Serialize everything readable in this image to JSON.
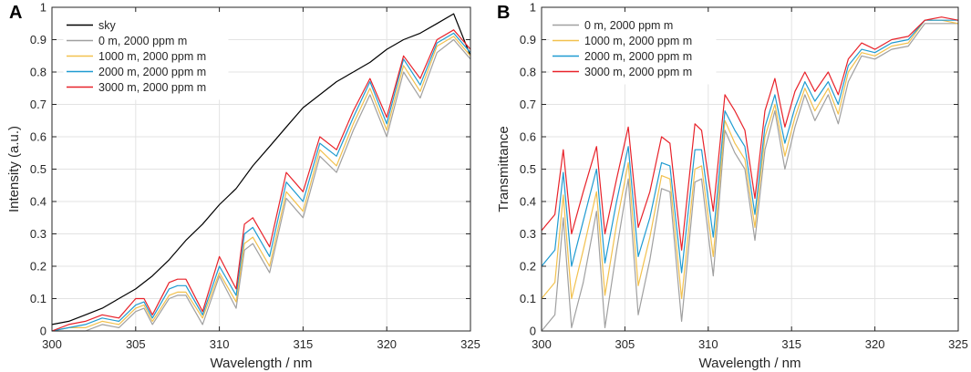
{
  "chart_data": [
    {
      "panel": "A",
      "type": "line",
      "xlabel": "Wavelength / nm",
      "ylabel": "Intensity (a.u.)",
      "xlim": [
        300,
        325
      ],
      "ylim": [
        0,
        1
      ],
      "xticks": [
        "300",
        "305",
        "310",
        "315",
        "320",
        "325"
      ],
      "yticks": [
        "0",
        "0.1",
        "0.2",
        "0.3",
        "0.4",
        "0.5",
        "0.6",
        "0.7",
        "0.8",
        "0.9",
        "1"
      ],
      "grid": true,
      "legend_position": "top-left",
      "series": [
        {
          "name": "sky",
          "color": "#000000",
          "x": [
            300,
            301,
            302,
            303,
            304,
            305,
            306,
            307,
            308,
            309,
            310,
            311,
            312,
            313,
            314,
            315,
            316,
            317,
            318,
            319,
            320,
            321,
            322,
            323,
            324,
            325
          ],
          "y": [
            0.02,
            0.03,
            0.05,
            0.07,
            0.1,
            0.13,
            0.17,
            0.22,
            0.28,
            0.33,
            0.39,
            0.44,
            0.51,
            0.57,
            0.63,
            0.69,
            0.73,
            0.77,
            0.8,
            0.83,
            0.87,
            0.9,
            0.92,
            0.95,
            0.98,
            0.85
          ]
        },
        {
          "name": "0 m, 2000 ppm m",
          "color": "#a0a0a0",
          "x": [
            300,
            301,
            302,
            303,
            304,
            305,
            305.5,
            306,
            307,
            307.5,
            308,
            309,
            310,
            311,
            311.5,
            312,
            313,
            314,
            315,
            316,
            317,
            318,
            319,
            320,
            321,
            322,
            323,
            324,
            325
          ],
          "y": [
            0,
            0,
            0,
            0.02,
            0.01,
            0.06,
            0.07,
            0.02,
            0.1,
            0.11,
            0.11,
            0.02,
            0.17,
            0.07,
            0.25,
            0.27,
            0.18,
            0.41,
            0.35,
            0.54,
            0.49,
            0.62,
            0.73,
            0.6,
            0.8,
            0.72,
            0.86,
            0.9,
            0.84
          ]
        },
        {
          "name": "1000 m, 2000 ppm m",
          "color": "#f2c14e",
          "x": [
            300,
            301,
            302,
            303,
            304,
            305,
            305.5,
            306,
            307,
            307.5,
            308,
            309,
            310,
            311,
            311.5,
            312,
            313,
            314,
            315,
            316,
            317,
            318,
            319,
            320,
            321,
            322,
            323,
            324,
            325
          ],
          "y": [
            0,
            0.01,
            0.01,
            0.03,
            0.02,
            0.07,
            0.08,
            0.03,
            0.11,
            0.12,
            0.12,
            0.04,
            0.18,
            0.09,
            0.27,
            0.29,
            0.2,
            0.43,
            0.37,
            0.56,
            0.51,
            0.64,
            0.75,
            0.62,
            0.82,
            0.74,
            0.88,
            0.91,
            0.85
          ]
        },
        {
          "name": "2000 m, 2000 ppm m",
          "color": "#1f9bd1",
          "x": [
            300,
            301,
            302,
            303,
            304,
            305,
            305.5,
            306,
            307,
            307.5,
            308,
            309,
            310,
            311,
            311.5,
            312,
            313,
            314,
            315,
            316,
            317,
            318,
            319,
            320,
            321,
            322,
            323,
            324,
            325
          ],
          "y": [
            0,
            0.01,
            0.02,
            0.04,
            0.03,
            0.08,
            0.09,
            0.04,
            0.13,
            0.14,
            0.14,
            0.05,
            0.2,
            0.11,
            0.3,
            0.32,
            0.23,
            0.46,
            0.4,
            0.58,
            0.54,
            0.66,
            0.77,
            0.64,
            0.84,
            0.76,
            0.89,
            0.92,
            0.86
          ]
        },
        {
          "name": "3000 m, 2000 ppm m",
          "color": "#e8222a",
          "x": [
            300,
            301,
            302,
            303,
            304,
            305,
            305.5,
            306,
            307,
            307.5,
            308,
            309,
            310,
            311,
            311.5,
            312,
            313,
            314,
            315,
            316,
            317,
            318,
            319,
            320,
            321,
            322,
            323,
            324,
            325
          ],
          "y": [
            0,
            0.02,
            0.03,
            0.05,
            0.04,
            0.1,
            0.1,
            0.05,
            0.15,
            0.16,
            0.16,
            0.06,
            0.23,
            0.13,
            0.33,
            0.35,
            0.26,
            0.49,
            0.43,
            0.6,
            0.56,
            0.68,
            0.78,
            0.66,
            0.85,
            0.78,
            0.9,
            0.93,
            0.87
          ]
        }
      ]
    },
    {
      "panel": "B",
      "type": "line",
      "xlabel": "Wavelength / nm",
      "ylabel": "Transmittance",
      "xlim": [
        300,
        325
      ],
      "ylim": [
        0,
        1
      ],
      "xticks": [
        "300",
        "305",
        "310",
        "315",
        "320",
        "325"
      ],
      "yticks": [
        "0",
        "0.1",
        "0.2",
        "0.3",
        "0.4",
        "0.5",
        "0.6",
        "0.7",
        "0.8",
        "0.9",
        "1"
      ],
      "grid": true,
      "legend_position": "top-left",
      "series": [
        {
          "name": "0 m, 2000 ppm m",
          "color": "#a0a0a0",
          "x": [
            300,
            300.8,
            301.3,
            301.8,
            302.5,
            303.3,
            303.8,
            304.5,
            305.2,
            305.8,
            306.5,
            307.2,
            307.7,
            308.4,
            309.2,
            309.6,
            310.3,
            311,
            311.6,
            312.2,
            312.8,
            313.4,
            314,
            314.6,
            315.2,
            315.8,
            316.4,
            317.2,
            317.8,
            318.4,
            319.2,
            320,
            321,
            322,
            323,
            324,
            325
          ],
          "y": [
            0,
            0.05,
            0.35,
            0.01,
            0.15,
            0.37,
            0.01,
            0.25,
            0.47,
            0.05,
            0.22,
            0.44,
            0.43,
            0.03,
            0.46,
            0.47,
            0.17,
            0.62,
            0.55,
            0.5,
            0.28,
            0.56,
            0.68,
            0.5,
            0.63,
            0.73,
            0.65,
            0.73,
            0.64,
            0.77,
            0.85,
            0.84,
            0.87,
            0.88,
            0.95,
            0.95,
            0.95
          ]
        },
        {
          "name": "1000 m, 2000 ppm m",
          "color": "#f2c14e",
          "x": [
            300,
            300.8,
            301.3,
            301.8,
            302.5,
            303.3,
            303.8,
            304.5,
            305.2,
            305.8,
            306.5,
            307.2,
            307.7,
            308.4,
            309.2,
            309.6,
            310.3,
            311,
            311.6,
            312.2,
            312.8,
            313.4,
            314,
            314.6,
            315.2,
            315.8,
            316.4,
            317.2,
            317.8,
            318.4,
            319.2,
            320,
            321,
            322,
            323,
            324,
            325
          ],
          "y": [
            0.1,
            0.15,
            0.42,
            0.1,
            0.25,
            0.43,
            0.11,
            0.33,
            0.52,
            0.14,
            0.29,
            0.48,
            0.47,
            0.1,
            0.5,
            0.51,
            0.23,
            0.65,
            0.58,
            0.53,
            0.32,
            0.6,
            0.7,
            0.54,
            0.66,
            0.75,
            0.68,
            0.75,
            0.67,
            0.8,
            0.86,
            0.85,
            0.88,
            0.89,
            0.96,
            0.96,
            0.95
          ]
        },
        {
          "name": "2000 m, 2000 ppm m",
          "color": "#1f9bd1",
          "x": [
            300,
            300.8,
            301.3,
            301.8,
            302.5,
            303.3,
            303.8,
            304.5,
            305.2,
            305.8,
            306.5,
            307.2,
            307.7,
            308.4,
            309.2,
            309.6,
            310.3,
            311,
            311.6,
            312.2,
            312.8,
            313.4,
            314,
            314.6,
            315.2,
            315.8,
            316.4,
            317.2,
            317.8,
            318.4,
            319.2,
            320,
            321,
            322,
            323,
            324,
            325
          ],
          "y": [
            0.2,
            0.25,
            0.49,
            0.2,
            0.34,
            0.5,
            0.21,
            0.4,
            0.57,
            0.23,
            0.35,
            0.52,
            0.51,
            0.18,
            0.56,
            0.56,
            0.29,
            0.68,
            0.62,
            0.57,
            0.36,
            0.63,
            0.73,
            0.58,
            0.69,
            0.77,
            0.71,
            0.77,
            0.7,
            0.82,
            0.87,
            0.86,
            0.89,
            0.9,
            0.96,
            0.96,
            0.96
          ]
        },
        {
          "name": "3000 m, 2000 ppm m",
          "color": "#e8222a",
          "x": [
            300,
            300.8,
            301.3,
            301.8,
            302.5,
            303.3,
            303.8,
            304.5,
            305.2,
            305.8,
            306.5,
            307.2,
            307.7,
            308.4,
            309.2,
            309.6,
            310.3,
            311,
            311.6,
            312.2,
            312.8,
            313.4,
            314,
            314.6,
            315.2,
            315.8,
            316.4,
            317.2,
            317.8,
            318.4,
            319.2,
            320,
            321,
            322,
            323,
            324,
            325
          ],
          "y": [
            0.31,
            0.36,
            0.56,
            0.3,
            0.43,
            0.57,
            0.3,
            0.47,
            0.63,
            0.32,
            0.43,
            0.6,
            0.58,
            0.25,
            0.64,
            0.62,
            0.37,
            0.73,
            0.68,
            0.62,
            0.41,
            0.68,
            0.78,
            0.63,
            0.74,
            0.8,
            0.74,
            0.8,
            0.73,
            0.84,
            0.89,
            0.87,
            0.9,
            0.91,
            0.96,
            0.97,
            0.96
          ]
        }
      ]
    }
  ]
}
